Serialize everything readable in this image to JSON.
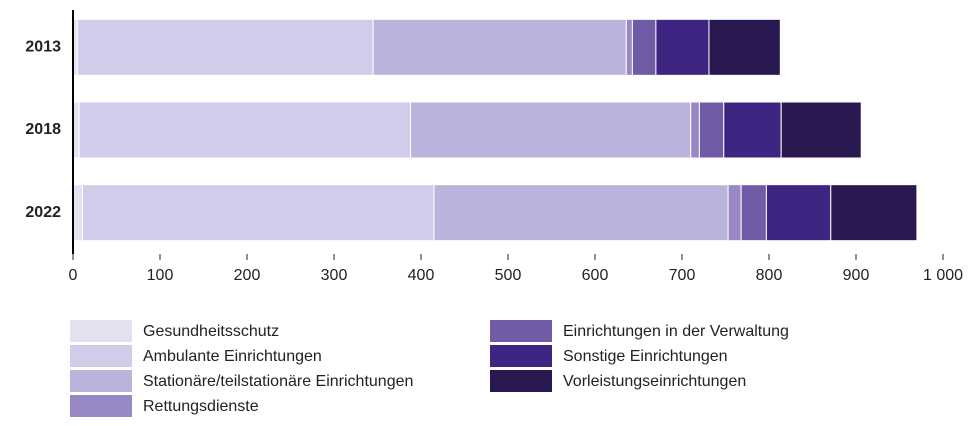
{
  "chart_data": {
    "type": "stacked_bar_horizontal",
    "categories": [
      "2013",
      "2018",
      "2022"
    ],
    "series": [
      {
        "name": "Gesundheitsschutz",
        "color": "#e4e1f1",
        "values": [
          5,
          7,
          11
        ]
      },
      {
        "name": "Ambulante Einrichtungen",
        "color": "#d0cce9",
        "values": [
          340,
          381,
          404
        ]
      },
      {
        "name": "Stationäre/teilstationäre Einrichtungen",
        "color": "#bab3dc",
        "values": [
          291,
          322,
          338
        ]
      },
      {
        "name": "Rettungsdienste",
        "color": "#9888c6",
        "values": [
          7,
          10,
          15
        ]
      },
      {
        "name": "Einrichtungen in der Verwaltung",
        "color": "#6f5ba6",
        "values": [
          27,
          28,
          29
        ]
      },
      {
        "name": "Sonstige Einrichtungen",
        "color": "#3e2582",
        "values": [
          61,
          66,
          74
        ]
      },
      {
        "name": "Vorleistungseinrichtungen",
        "color": "#2a1850",
        "values": [
          82,
          92,
          99
        ]
      }
    ],
    "xlim": [
      0,
      1000
    ],
    "xticks": [
      0,
      100,
      200,
      300,
      400,
      500,
      600,
      700,
      800,
      900,
      {
        "value": 1000,
        "label": "1 000"
      }
    ]
  }
}
